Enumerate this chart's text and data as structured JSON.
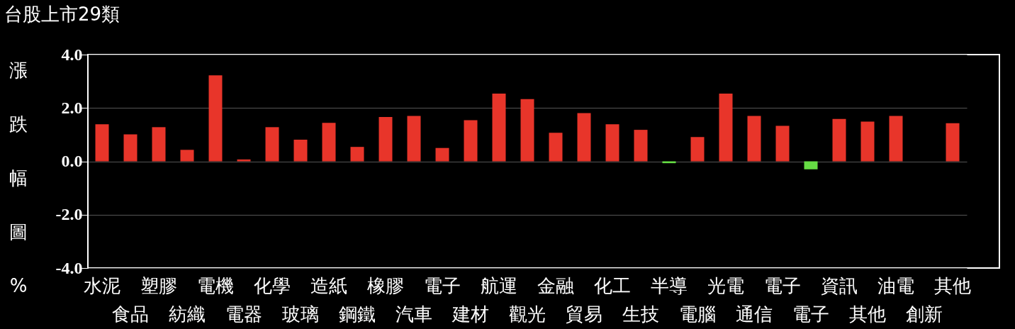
{
  "chart_data": {
    "type": "bar",
    "title": "台股上市29類",
    "ylabel": "漲跌幅圖%",
    "categories": [
      "水泥",
      "食品",
      "塑膠",
      "紡織",
      "電機",
      "電器",
      "化學",
      "玻璃",
      "造紙",
      "鋼鐵",
      "橡膠",
      "汽車",
      "電子",
      "建材",
      "航運",
      "觀光",
      "金融",
      "貿易",
      "化工",
      "生技",
      "半導",
      "電腦",
      "光電",
      "通信",
      "電子",
      "電子",
      "資訊",
      "其他",
      "油電",
      "創新",
      "其他"
    ],
    "values": [
      1.39,
      1.01,
      1.28,
      0.43,
      3.22,
      0.07,
      1.28,
      0.81,
      1.44,
      0.54,
      1.66,
      1.7,
      0.5,
      1.54,
      2.54,
      2.33,
      1.07,
      1.81,
      1.39,
      1.18,
      -0.07,
      0.91,
      2.54,
      1.7,
      1.33,
      -0.3,
      1.59,
      1.49,
      1.7,
      null,
      1.43
    ],
    "colors": [
      "#e8352a",
      "#e8352a",
      "#e8352a",
      "#e8352a",
      "#e8352a",
      "#e8352a",
      "#e8352a",
      "#e8352a",
      "#e8352a",
      "#e8352a",
      "#e8352a",
      "#e8352a",
      "#e8352a",
      "#e8352a",
      "#e8352a",
      "#e8352a",
      "#e8352a",
      "#e8352a",
      "#e8352a",
      "#e8352a",
      "#66dd44",
      "#e8352a",
      "#e8352a",
      "#e8352a",
      "#e8352a",
      "#66dd44",
      "#e8352a",
      "#e8352a",
      "#e8352a",
      "#e8352a",
      "#e8352a"
    ],
    "ylim": [
      -4,
      4
    ],
    "yticks": [
      {
        "value": -4,
        "label": "-4.0"
      },
      {
        "value": -2,
        "label": "-2.0"
      },
      {
        "value": 0,
        "label": "0.0"
      },
      {
        "value": 2,
        "label": "2.0"
      },
      {
        "value": 4,
        "label": "4.0"
      }
    ],
    "grid": "y"
  }
}
